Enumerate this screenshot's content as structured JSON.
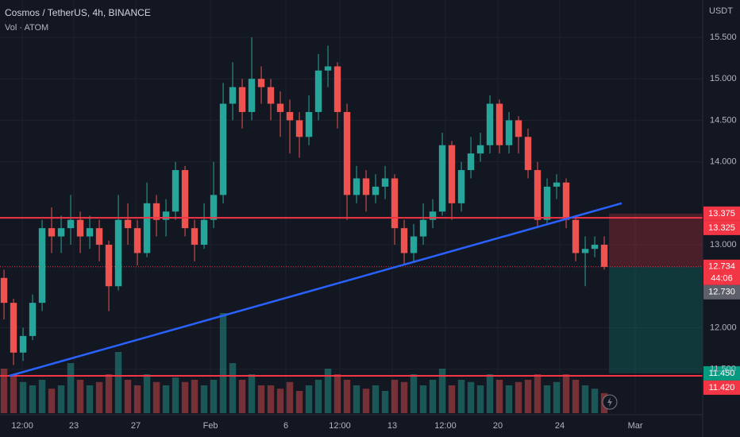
{
  "chart_data": {
    "type": "candlestick",
    "title": "Cosmos / TetherUS, 4h, BINANCE",
    "subtitle": "Vol · ATOM",
    "y_axis_label": "USDT",
    "x": [
      0,
      1,
      2,
      3,
      4,
      5,
      6,
      7,
      8,
      9,
      10,
      11,
      12,
      13,
      14,
      15,
      16,
      17,
      18,
      19,
      20,
      21,
      22,
      23,
      24,
      25,
      26,
      27,
      28,
      29,
      30,
      31,
      32,
      33,
      34,
      35,
      36,
      37,
      38,
      39,
      40,
      41,
      42,
      43,
      44,
      45,
      46,
      47,
      48,
      49,
      50,
      51,
      52,
      53,
      54,
      55,
      56,
      57,
      58,
      59,
      60,
      61,
      62,
      63
    ],
    "open": [
      12.6,
      12.3,
      11.7,
      11.9,
      12.3,
      13.2,
      13.1,
      13.2,
      13.3,
      13.1,
      13.2,
      13.0,
      12.5,
      13.3,
      13.2,
      12.9,
      13.5,
      13.3,
      13.4,
      13.9,
      13.2,
      13.0,
      13.3,
      13.6,
      14.7,
      14.9,
      14.6,
      15.0,
      14.9,
      14.7,
      14.6,
      14.5,
      14.3,
      14.6,
      15.1,
      15.15,
      14.6,
      13.6,
      13.8,
      13.6,
      13.7,
      13.8,
      13.2,
      12.9,
      13.1,
      13.3,
      13.4,
      14.2,
      13.5,
      13.9,
      14.1,
      14.2,
      14.7,
      14.2,
      14.5,
      14.3,
      13.9,
      13.3,
      13.7,
      13.75,
      13.3,
      12.9,
      12.95,
      13.0
    ],
    "high": [
      12.7,
      12.35,
      12.0,
      12.4,
      13.3,
      13.45,
      13.35,
      13.6,
      13.4,
      13.35,
      13.3,
      13.05,
      13.6,
      13.5,
      13.3,
      13.75,
      13.6,
      13.55,
      14.0,
      13.95,
      13.3,
      13.5,
      14.0,
      14.95,
      15.2,
      15.0,
      15.5,
      15.15,
      15.0,
      14.85,
      14.75,
      14.6,
      14.8,
      15.3,
      15.4,
      15.2,
      14.7,
      13.95,
      13.9,
      13.85,
      13.95,
      13.85,
      13.3,
      13.25,
      13.5,
      13.55,
      14.35,
      14.25,
      14.0,
      14.3,
      14.35,
      14.8,
      14.75,
      14.6,
      14.55,
      14.4,
      14.0,
      13.8,
      13.85,
      13.8,
      13.35,
      13.1,
      13.1,
      13.1
    ],
    "low": [
      12.1,
      11.55,
      11.6,
      11.85,
      12.2,
      12.9,
      12.9,
      13.0,
      12.9,
      12.95,
      12.8,
      12.2,
      12.45,
      13.0,
      12.75,
      12.85,
      13.1,
      13.1,
      13.3,
      13.1,
      12.8,
      12.95,
      13.2,
      13.5,
      14.5,
      14.4,
      14.5,
      14.7,
      14.5,
      14.3,
      14.1,
      14.05,
      14.2,
      14.5,
      14.9,
      14.4,
      13.3,
      13.5,
      13.4,
      13.5,
      13.55,
      13.0,
      12.75,
      12.8,
      13.0,
      13.2,
      13.35,
      13.3,
      13.4,
      13.8,
      14.0,
      14.1,
      14.1,
      14.1,
      14.1,
      13.8,
      13.2,
      13.25,
      13.55,
      13.2,
      12.8,
      12.5,
      12.85,
      12.7
    ],
    "close": [
      12.3,
      11.7,
      11.9,
      12.3,
      13.2,
      13.1,
      13.2,
      13.3,
      13.1,
      13.2,
      13.0,
      12.5,
      13.3,
      13.2,
      12.9,
      13.5,
      13.3,
      13.4,
      13.9,
      13.2,
      13.0,
      13.3,
      13.6,
      14.7,
      14.9,
      14.6,
      15.0,
      14.9,
      14.7,
      14.6,
      14.5,
      14.3,
      14.6,
      15.1,
      15.15,
      14.6,
      13.6,
      13.8,
      13.6,
      13.7,
      13.8,
      13.2,
      12.9,
      13.1,
      13.3,
      13.4,
      14.2,
      13.5,
      13.9,
      14.1,
      14.2,
      14.7,
      14.2,
      14.5,
      14.3,
      13.9,
      13.3,
      13.7,
      13.75,
      13.3,
      12.9,
      12.95,
      13.0,
      12.734
    ],
    "volume": [
      40,
      35,
      28,
      25,
      30,
      22,
      25,
      45,
      30,
      25,
      28,
      35,
      55,
      30,
      25,
      35,
      28,
      25,
      32,
      28,
      30,
      25,
      30,
      90,
      45,
      30,
      35,
      25,
      25,
      22,
      28,
      20,
      25,
      30,
      40,
      35,
      30,
      25,
      22,
      25,
      20,
      30,
      28,
      35,
      25,
      30,
      40,
      25,
      30,
      28,
      25,
      35,
      30,
      25,
      28,
      30,
      35,
      25,
      28,
      35,
      30,
      25,
      22,
      18
    ],
    "volume_ylim": [
      0,
      100
    ],
    "up_color": "#26a69a",
    "down_color": "#ef5350",
    "xlim": [
      -0.42,
      73.33
    ],
    "ylim": [
      10.97,
      15.95
    ],
    "xticks": [
      {
        "value": 1.92,
        "label": "12:00"
      },
      {
        "value": 7.33,
        "label": "23"
      },
      {
        "value": 13.83,
        "label": "27"
      },
      {
        "value": 21.67,
        "label": "Feb"
      },
      {
        "value": 29.58,
        "label": "6"
      },
      {
        "value": 35.25,
        "label": "12:00"
      },
      {
        "value": 40.75,
        "label": "13"
      },
      {
        "value": 46.33,
        "label": "12:00"
      },
      {
        "value": 51.83,
        "label": "20"
      },
      {
        "value": 58.33,
        "label": "24"
      },
      {
        "value": 66.25,
        "label": "Mar"
      }
    ],
    "yticks": [
      {
        "value": 11.5,
        "label": "11.500"
      },
      {
        "value": 12,
        "label": "12.000"
      },
      {
        "value": 13,
        "label": "13.000"
      },
      {
        "value": 14,
        "label": "14.000"
      },
      {
        "value": 14.5,
        "label": "14.500"
      },
      {
        "value": 15,
        "label": "15.000"
      },
      {
        "value": 15.5,
        "label": "15.500"
      }
    ],
    "grid": true,
    "horizontal_lines": [
      {
        "value": 13.325,
        "color": "#f23645"
      },
      {
        "value": 11.42,
        "color": "#f23645"
      }
    ],
    "trendline": {
      "x": [
        0.58,
        64.83
      ],
      "y": [
        11.42,
        13.5
      ],
      "color": "#2962ff"
    },
    "position": {
      "x_start": 63.5,
      "entry": 12.734,
      "stop": 13.375,
      "target": 11.45
    },
    "price_labels": [
      {
        "value": 13.375,
        "label": "13.375",
        "color": "#f23645"
      },
      {
        "value": 13.325,
        "label": "13.325",
        "color": "#f23645"
      },
      {
        "value": 12.734,
        "label": "12.734",
        "countdown": "44:06",
        "color": "#f23645"
      },
      {
        "value": 12.73,
        "label": "12.730",
        "color": "#5d606b"
      },
      {
        "value": 11.45,
        "label": "11.450",
        "color": "#089981"
      },
      {
        "value": 11.42,
        "label": "11.420",
        "color": "#f23645"
      }
    ]
  }
}
